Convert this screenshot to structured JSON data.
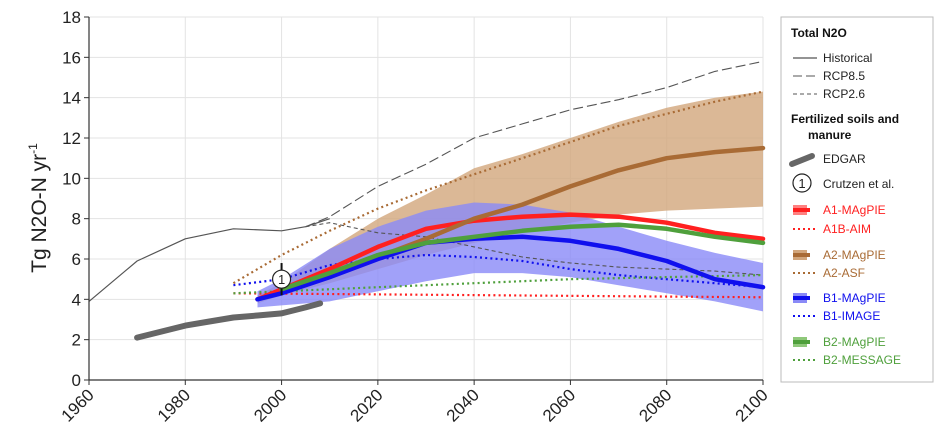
{
  "chart_data": {
    "type": "line",
    "title": "",
    "xlabel": "",
    "ylabel": "Tg N2O-N yr",
    "ylabel_sup": "-1",
    "xlim": [
      1960,
      2100
    ],
    "ylim": [
      0,
      18
    ],
    "xticks": [
      "1960",
      "1980",
      "2000",
      "2020",
      "2040",
      "2060",
      "2080",
      "2100"
    ],
    "yticks": [
      "0",
      "2",
      "4",
      "6",
      "8",
      "10",
      "12",
      "14",
      "16",
      "18"
    ],
    "grid": true,
    "legend_position": "right",
    "bands": [
      {
        "name": "A2-MAgPIE",
        "color": "#d2a67c",
        "x": [
          1995,
          2000,
          2010,
          2020,
          2030,
          2040,
          2050,
          2060,
          2070,
          2080,
          2090,
          2100
        ],
        "upper": [
          4.2,
          4.8,
          6.5,
          8.0,
          9.2,
          10.5,
          11.2,
          12.0,
          12.8,
          13.5,
          14.0,
          14.3
        ],
        "lower": [
          3.8,
          4.2,
          4.8,
          5.5,
          6.2,
          6.8,
          7.3,
          7.8,
          8.2,
          8.4,
          8.5,
          8.6
        ]
      },
      {
        "name": "B1-MAgPIE",
        "color": "#8a8af7",
        "x": [
          1995,
          2000,
          2010,
          2020,
          2030,
          2040,
          2050,
          2060,
          2070,
          2080,
          2090,
          2100
        ],
        "upper": [
          4.4,
          5.0,
          6.5,
          7.6,
          8.4,
          8.8,
          8.7,
          8.3,
          7.6,
          6.9,
          6.3,
          5.8
        ],
        "lower": [
          3.6,
          3.7,
          3.9,
          4.4,
          4.9,
          5.3,
          5.3,
          5.1,
          4.7,
          4.3,
          3.9,
          3.4
        ]
      }
    ],
    "series": [
      {
        "name": "Historical",
        "group": "total",
        "style": "solid-thin",
        "color": "#555555",
        "x": [
          1960,
          1970,
          1980,
          1990,
          2000,
          2005,
          2010
        ],
        "y": [
          3.9,
          5.9,
          7.0,
          7.5,
          7.4,
          7.6,
          8.0
        ]
      },
      {
        "name": "RCP8.5",
        "group": "total",
        "style": "longdash",
        "color": "#555555",
        "x": [
          2005,
          2010,
          2020,
          2030,
          2040,
          2050,
          2060,
          2070,
          2080,
          2090,
          2100
        ],
        "y": [
          7.6,
          8.1,
          9.6,
          10.7,
          12.0,
          12.7,
          13.4,
          13.9,
          14.5,
          15.3,
          15.8
        ]
      },
      {
        "name": "RCP2.6",
        "group": "total",
        "style": "shortdash",
        "color": "#555555",
        "x": [
          2005,
          2010,
          2020,
          2030,
          2040,
          2050,
          2060,
          2070,
          2080,
          2090,
          2100
        ],
        "y": [
          7.6,
          7.8,
          7.3,
          7.1,
          6.6,
          6.1,
          5.8,
          5.6,
          5.5,
          5.4,
          5.2
        ]
      },
      {
        "name": "EDGAR",
        "group": "fert",
        "style": "thick-gray",
        "color": "#666666",
        "x": [
          1970,
          1975,
          1980,
          1985,
          1990,
          1995,
          2000,
          2005,
          2008
        ],
        "y": [
          2.1,
          2.4,
          2.7,
          2.9,
          3.1,
          3.2,
          3.3,
          3.6,
          3.8
        ]
      },
      {
        "name": "A1-MAgPIE",
        "group": "fert",
        "style": "thick",
        "color": "#ff2020",
        "x": [
          1995,
          2000,
          2010,
          2020,
          2030,
          2040,
          2050,
          2060,
          2070,
          2080,
          2090,
          2100
        ],
        "y": [
          4.0,
          4.5,
          5.5,
          6.6,
          7.5,
          7.9,
          8.1,
          8.2,
          8.1,
          7.8,
          7.3,
          7.0
        ]
      },
      {
        "name": "A1B-AIM",
        "group": "fert",
        "style": "dotted",
        "color": "#ff2020",
        "x": [
          1990,
          2100
        ],
        "y": [
          4.3,
          4.1
        ]
      },
      {
        "name": "A2-MAgPIE",
        "group": "fert",
        "style": "thick",
        "color": "#a96b35",
        "x": [
          2000,
          2010,
          2020,
          2030,
          2040,
          2050,
          2060,
          2070,
          2080,
          2090,
          2100
        ],
        "y": [
          4.5,
          5.3,
          6.1,
          7.0,
          8.0,
          8.7,
          9.6,
          10.4,
          11.0,
          11.3,
          11.5
        ]
      },
      {
        "name": "A2-ASF",
        "group": "fert",
        "style": "dotted",
        "color": "#a96b35",
        "x": [
          1990,
          2000,
          2010,
          2020,
          2030,
          2040,
          2050,
          2060,
          2070,
          2080,
          2090,
          2100
        ],
        "y": [
          4.8,
          6.2,
          7.4,
          8.5,
          9.4,
          10.2,
          11.0,
          11.8,
          12.6,
          13.2,
          13.8,
          14.3
        ]
      },
      {
        "name": "B1-MAgPIE",
        "group": "fert",
        "style": "thick",
        "color": "#1010ee",
        "x": [
          1995,
          2000,
          2010,
          2020,
          2030,
          2040,
          2050,
          2060,
          2070,
          2080,
          2090,
          2100
        ],
        "y": [
          4.0,
          4.3,
          5.1,
          6.0,
          6.8,
          7.0,
          7.1,
          6.9,
          6.5,
          5.9,
          5.0,
          4.6
        ]
      },
      {
        "name": "B1-IMAGE",
        "group": "fert",
        "style": "dotted",
        "color": "#1010ee",
        "x": [
          1990,
          2000,
          2010,
          2020,
          2030,
          2040,
          2050,
          2060,
          2070,
          2080,
          2090,
          2100
        ],
        "y": [
          4.7,
          5.0,
          5.7,
          6.0,
          6.2,
          6.1,
          5.9,
          5.5,
          5.2,
          5.0,
          4.8,
          4.6
        ]
      },
      {
        "name": "B2-MAgPIE",
        "group": "fert",
        "style": "thick",
        "color": "#4fa03c",
        "x": [
          2000,
          2010,
          2020,
          2030,
          2040,
          2050,
          2060,
          2070,
          2080,
          2090,
          2100
        ],
        "y": [
          4.5,
          5.3,
          6.2,
          6.8,
          7.1,
          7.4,
          7.6,
          7.7,
          7.5,
          7.1,
          6.8
        ]
      },
      {
        "name": "B2-MESSAGE",
        "group": "fert",
        "style": "dotted",
        "color": "#4fa03c",
        "x": [
          1990,
          2000,
          2020,
          2040,
          2060,
          2080,
          2100
        ],
        "y": [
          4.3,
          4.4,
          4.6,
          4.8,
          5.0,
          5.1,
          5.2
        ]
      }
    ],
    "point": {
      "name": "Crutzen et al.",
      "label": "1",
      "x": 2000,
      "y": 5.0,
      "error": [
        4.2,
        5.8
      ]
    }
  },
  "legend": {
    "group_total_title": "Total N2O",
    "group_fert_title_line1": "Fertilized soils and",
    "group_fert_title_line2": "manure",
    "items": [
      {
        "key": "historical",
        "label": "Historical"
      },
      {
        "key": "rcp85",
        "label": "RCP8.5"
      },
      {
        "key": "rcp26",
        "label": "RCP2.6"
      },
      {
        "key": "edgar",
        "label": "EDGAR"
      },
      {
        "key": "crutzen",
        "label": "Crutzen et al.",
        "marker_text": "1"
      },
      {
        "key": "a1_magpie",
        "label": "A1-MAgPIE",
        "color": "#ff2020"
      },
      {
        "key": "a1b_aim",
        "label": "A1B-AIM",
        "color": "#ff2020"
      },
      {
        "key": "a2_magpie",
        "label": "A2-MAgPIE",
        "color": "#a96b35"
      },
      {
        "key": "a2_asf",
        "label": "A2-ASF",
        "color": "#a96b35"
      },
      {
        "key": "b1_magpie",
        "label": "B1-MAgPIE",
        "color": "#1010ee"
      },
      {
        "key": "b1_image",
        "label": "B1-IMAGE",
        "color": "#1010ee"
      },
      {
        "key": "b2_magpie",
        "label": "B2-MAgPIE",
        "color": "#4fa03c"
      },
      {
        "key": "b2_message",
        "label": "B2-MESSAGE",
        "color": "#4fa03c"
      }
    ]
  }
}
